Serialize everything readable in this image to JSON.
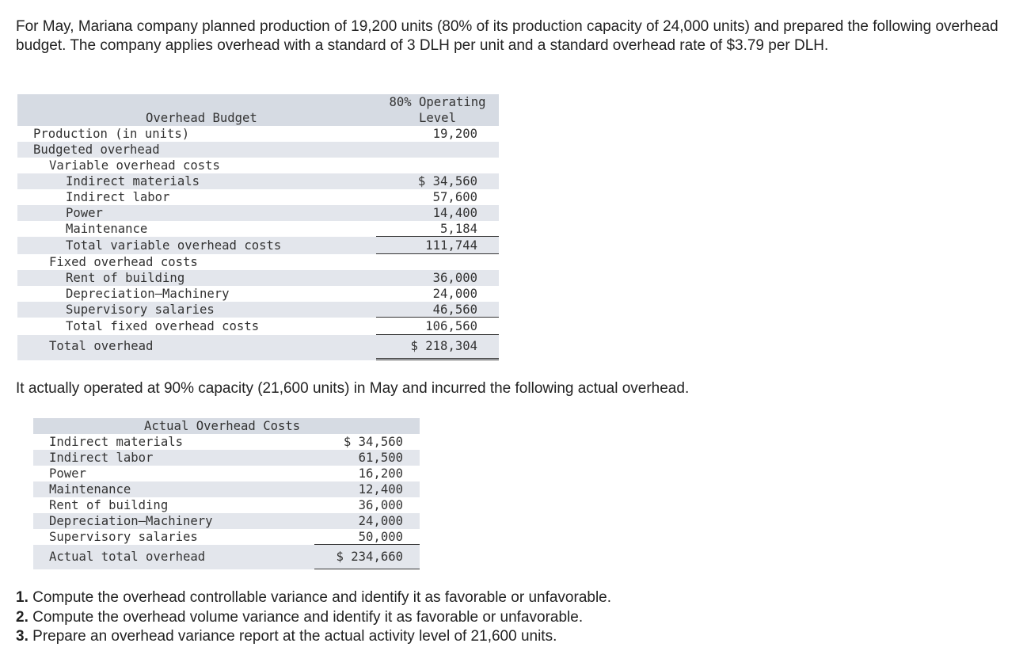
{
  "intro": "For May, Mariana company planned production of 19,200 units (80% of its production capacity of 24,000 units) and prepared the following overhead budget. The company applies overhead with a standard of 3 DLH per unit and a standard overhead rate of $3.79 per DLH.",
  "budget": {
    "title": "Overhead Budget",
    "column": "80% Operating Level",
    "rows": [
      {
        "label": "Production (in units)",
        "value": "19,200"
      },
      {
        "label": "Budgeted overhead"
      },
      {
        "label": "Variable overhead costs"
      },
      {
        "label": "Indirect materials",
        "value": "$ 34,560"
      },
      {
        "label": "Indirect labor",
        "value": "57,600"
      },
      {
        "label": "Power",
        "value": "14,400"
      },
      {
        "label": "Maintenance",
        "value": "5,184"
      },
      {
        "label": "Total variable overhead costs",
        "value": "111,744"
      },
      {
        "label": "Fixed overhead costs"
      },
      {
        "label": "Rent of building",
        "value": "36,000"
      },
      {
        "label": "Depreciation—Machinery",
        "value": "24,000"
      },
      {
        "label": "Supervisory salaries",
        "value": "46,560"
      },
      {
        "label": "Total fixed overhead costs",
        "value": "106,560"
      },
      {
        "label": "Total overhead",
        "value": "$ 218,304"
      }
    ]
  },
  "actual_intro": "It actually operated at 90% capacity (21,600 units) in May and incurred the following actual overhead.",
  "actual": {
    "title": "Actual Overhead Costs",
    "rows": [
      {
        "label": "Indirect materials",
        "value": "$ 34,560"
      },
      {
        "label": "Indirect labor",
        "value": "61,500"
      },
      {
        "label": "Power",
        "value": "16,200"
      },
      {
        "label": "Maintenance",
        "value": "12,400"
      },
      {
        "label": "Rent of building",
        "value": "36,000"
      },
      {
        "label": "Depreciation—Machinery",
        "value": "24,000"
      },
      {
        "label": "Supervisory salaries",
        "value": "50,000"
      },
      {
        "label": "Actual total overhead",
        "value": "$ 234,660"
      }
    ]
  },
  "questions": [
    {
      "number": "1.",
      "text": "Compute the overhead controllable variance and identify it as favorable or unfavorable."
    },
    {
      "number": "2.",
      "text": "Compute the overhead volume variance and identify it as favorable or unfavorable."
    },
    {
      "number": "3.",
      "text": "Prepare an overhead variance report at the actual activity level of 21,600 units."
    }
  ]
}
